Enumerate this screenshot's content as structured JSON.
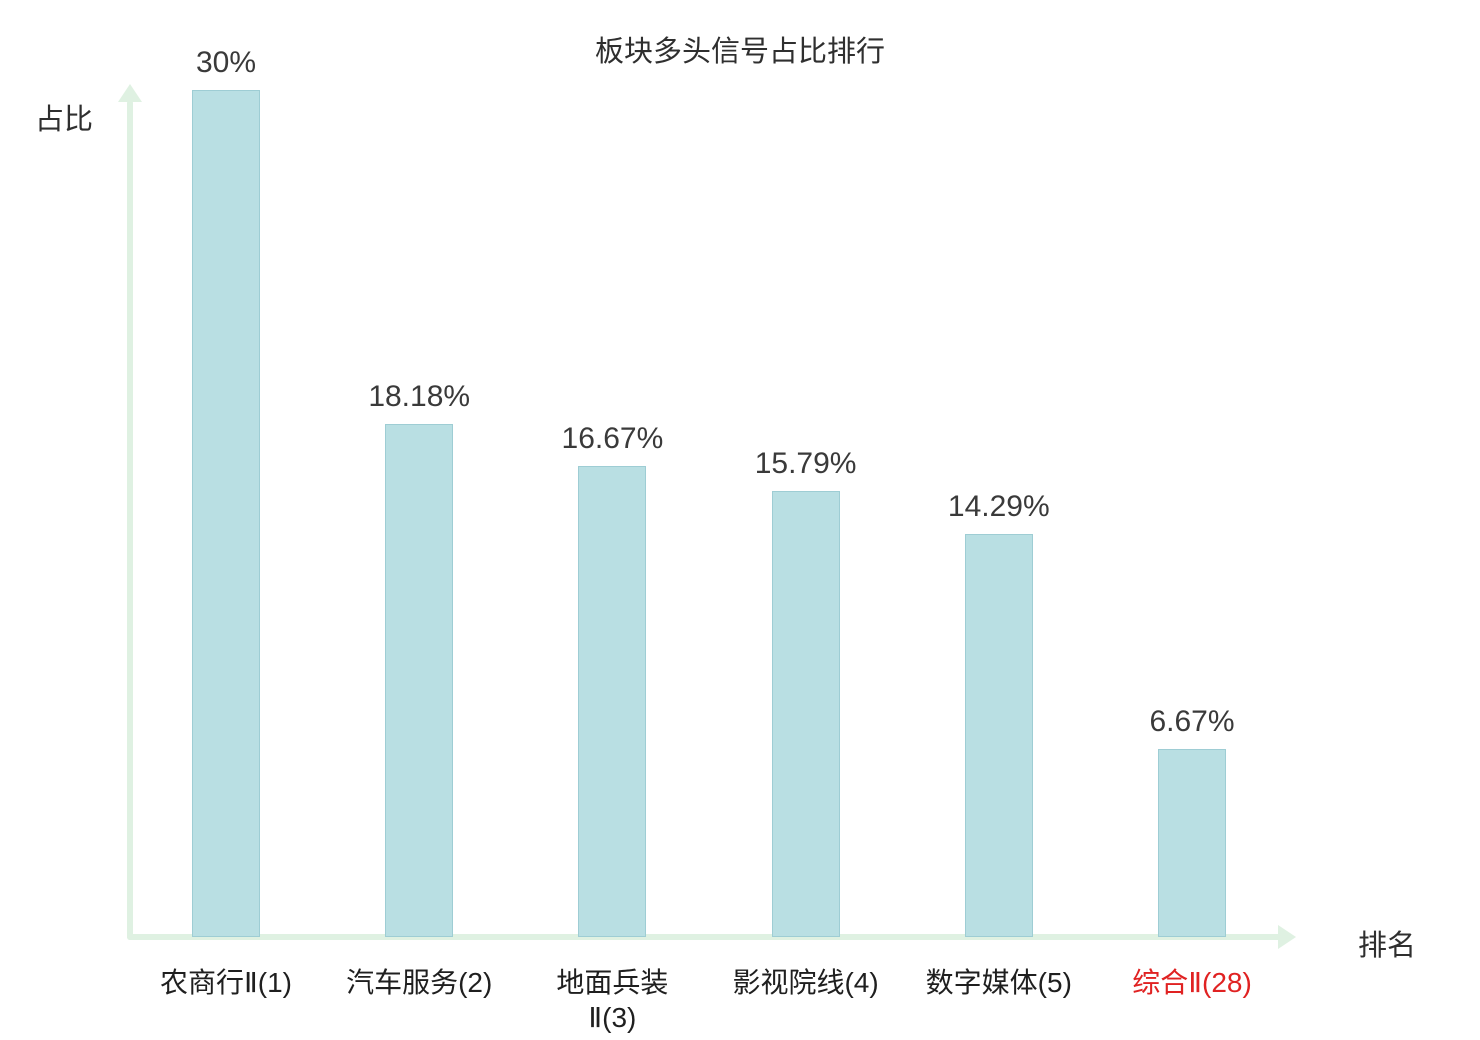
{
  "chart_data": {
    "type": "bar",
    "title": "板块多头信号占比排行",
    "xlabel": "排名",
    "ylabel": "占比",
    "categories": [
      "农商行Ⅱ(1)",
      "汽车服务(2)",
      "地面兵装\nⅡ(3)",
      "影视院线(4)",
      "数字媒体(5)",
      "综合Ⅱ(28)"
    ],
    "values": [
      30,
      18.18,
      16.67,
      15.79,
      14.29,
      6.67
    ],
    "value_labels": [
      "30%",
      "18.18%",
      "16.67%",
      "15.79%",
      "14.29%",
      "6.67%"
    ],
    "highlight_index": 5,
    "highlight_color": "#e02222",
    "bar_fill_color": "#b9dfe3",
    "bar_border_color": "#9ecdd4",
    "axis_color": "#dff1e2",
    "ylim": [
      0,
      30
    ],
    "grid": false,
    "legend": "none"
  }
}
